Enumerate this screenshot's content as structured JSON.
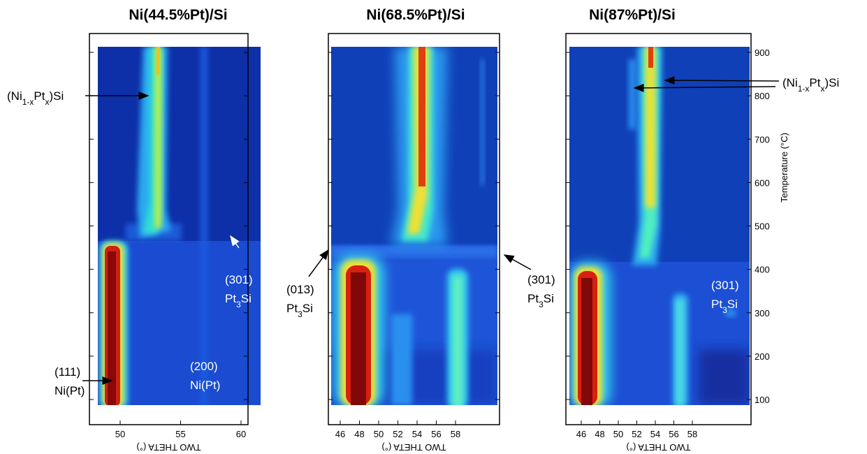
{
  "panels": [
    {
      "title": "Ni(44.5%Pt)/Si",
      "xticks": [
        50,
        55,
        60
      ],
      "xlabel": "TWO THETA (°)",
      "annotations": [
        {
          "lines": [
            [
              {
                "t": "(Ni"
              },
              {
                "t": "1-x",
                "sub": true
              },
              {
                "t": "Pt"
              },
              {
                "t": "x",
                "sub": true
              },
              {
                "t": ")Si"
              }
            ]
          ]
        },
        {
          "lines": [
            [
              {
                "t": "(301)"
              }
            ],
            [
              {
                "t": "Pt"
              },
              {
                "t": "3",
                "sub": true
              },
              {
                "t": "Si"
              }
            ]
          ]
        },
        {
          "lines": [
            [
              {
                "t": "(111)"
              }
            ],
            [
              {
                "t": "Ni(Pt)"
              }
            ]
          ]
        },
        {
          "lines": [
            [
              {
                "t": "(200)"
              }
            ],
            [
              {
                "t": "Ni(Pt)"
              }
            ]
          ]
        }
      ]
    },
    {
      "title": "Ni(68.5%Pt)/Si",
      "xticks": [
        46,
        48,
        50,
        52,
        54,
        56,
        58
      ],
      "xlabel": "TWO THETA (°)",
      "annotations": [
        {
          "lines": [
            [
              {
                "t": "(013)"
              }
            ],
            [
              {
                "t": "Pt"
              },
              {
                "t": "3",
                "sub": true
              },
              {
                "t": "Si"
              }
            ]
          ]
        },
        {
          "lines": [
            [
              {
                "t": "(301)"
              }
            ],
            [
              {
                "t": "Pt"
              },
              {
                "t": "3",
                "sub": true
              },
              {
                "t": "Si"
              }
            ]
          ]
        }
      ]
    },
    {
      "title": "Ni(87%Pt)/Si",
      "xticks": [
        46,
        48,
        50,
        52,
        54,
        56,
        58
      ],
      "xlabel": "TWO THETA (°)",
      "annotations": [
        {
          "lines": [
            [
              {
                "t": "(Ni"
              },
              {
                "t": "1-x",
                "sub": true
              },
              {
                "t": "Pt"
              },
              {
                "t": "x",
                "sub": true
              },
              {
                "t": ")Si"
              }
            ]
          ]
        },
        {
          "lines": [
            [
              {
                "t": "(301)"
              }
            ],
            [
              {
                "t": "Pt"
              },
              {
                "t": "3",
                "sub": true
              },
              {
                "t": "Si"
              }
            ]
          ]
        }
      ]
    }
  ],
  "yaxis": {
    "label": "Temperature (°C)",
    "ticks": [
      100,
      200,
      300,
      400,
      500,
      600,
      700,
      800,
      900
    ]
  }
}
